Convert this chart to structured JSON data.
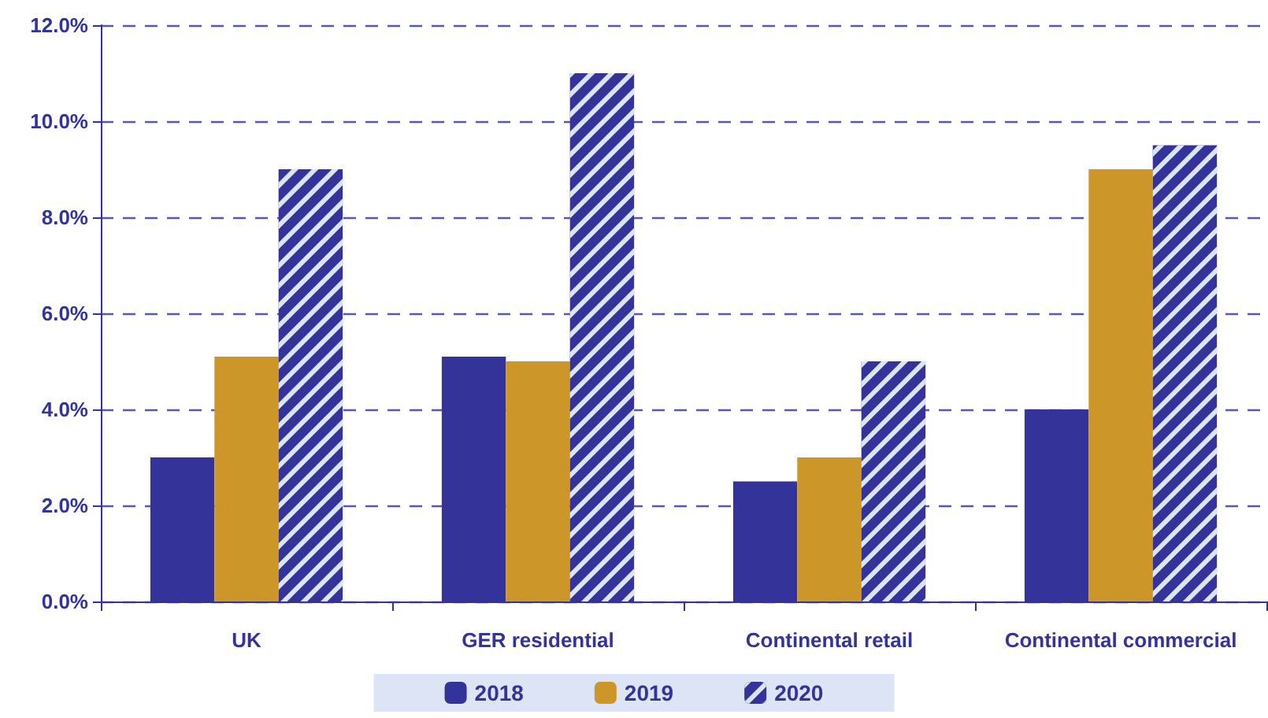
{
  "chart_data": {
    "type": "bar",
    "categories": [
      "UK",
      "GER residential",
      "Continental retail",
      "Continental commercial"
    ],
    "series": [
      {
        "name": "2018",
        "color": "#333399",
        "values": [
          3.0,
          5.1,
          2.5,
          4.0
        ]
      },
      {
        "name": "2019",
        "color": "#cc9629",
        "values": [
          5.1,
          5.0,
          3.0,
          9.0
        ]
      },
      {
        "name": "2020",
        "color": "#333399",
        "values": [
          9.0,
          11.0,
          5.0,
          9.5
        ]
      }
    ],
    "ylim": [
      0,
      12
    ],
    "yticks": [
      {
        "value": 0,
        "label": "0.0%"
      },
      {
        "value": 2,
        "label": "2.0%"
      },
      {
        "value": 4,
        "label": "4.0%"
      },
      {
        "value": 6,
        "label": "6.0%"
      },
      {
        "value": 8,
        "label": "8.0%"
      },
      {
        "value": 10,
        "label": "10.0%"
      },
      {
        "value": 12,
        "label": "12.0%"
      }
    ],
    "grid": "y",
    "legend": "bottom"
  }
}
